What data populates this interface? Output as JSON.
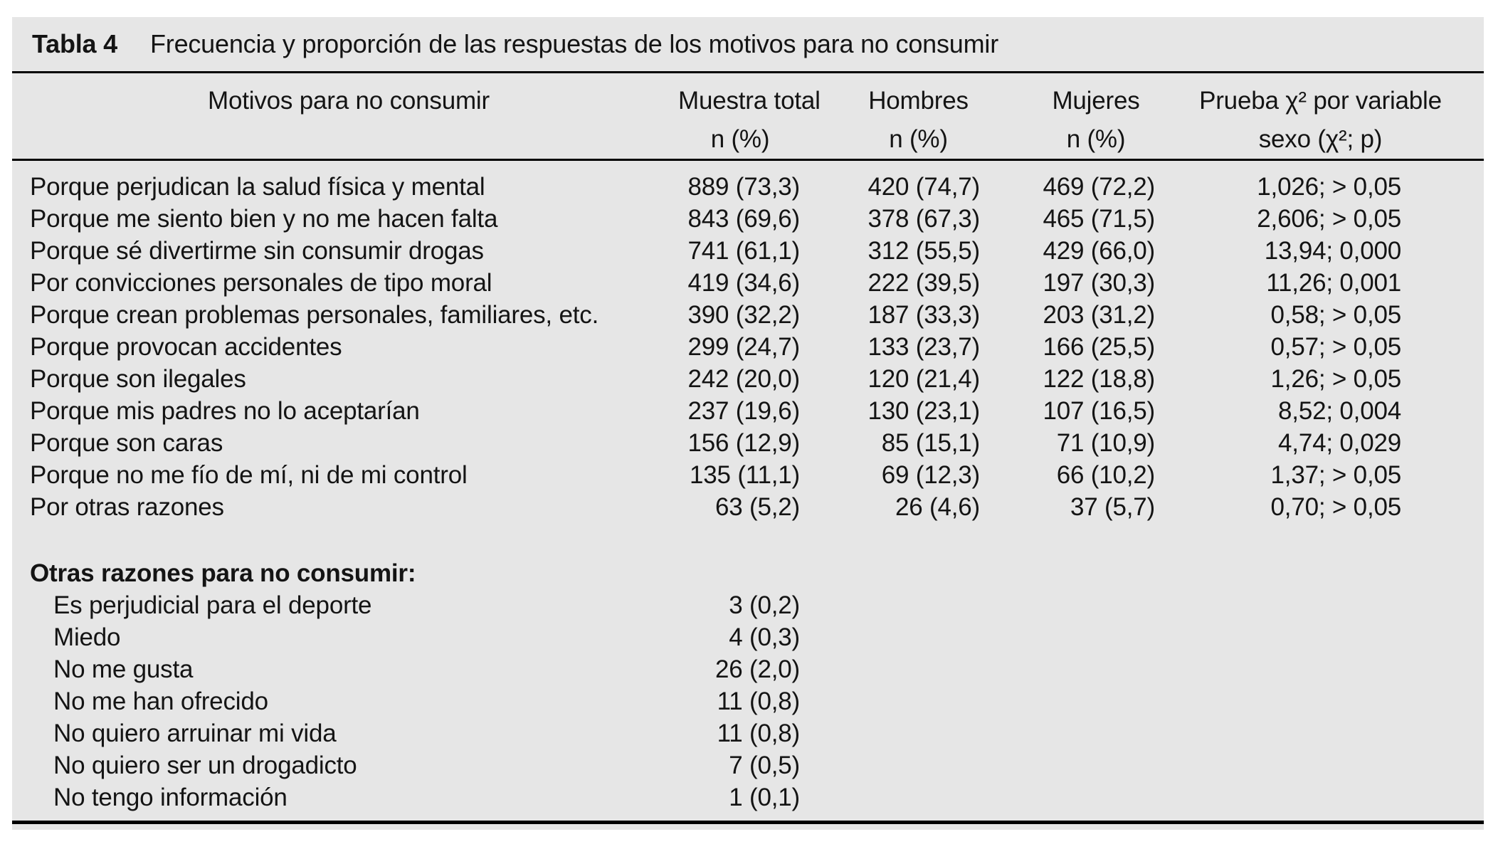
{
  "page": {
    "background": "#ffffff",
    "panel_background": "#e6e6e6",
    "rule_color": "#000000",
    "text_color": "#141414"
  },
  "caption": {
    "label": "Tabla 4",
    "text": "Frecuencia y proporción de las respuestas de los motivos para no consumir"
  },
  "columns": [
    {
      "line1": "Motivos para no consumir",
      "line2": ""
    },
    {
      "line1": "Muestra total",
      "line2": "n (%)"
    },
    {
      "line1": "Hombres",
      "line2": "n (%)"
    },
    {
      "line1": "Mujeres",
      "line2": "n (%)"
    },
    {
      "line1": "Prueba χ² por variable",
      "line2": "sexo (χ²; p)"
    }
  ],
  "rows": [
    {
      "motivo": "Porque perjudican la salud física y mental",
      "total": "889 (73,3)",
      "hombres": "420 (74,7)",
      "mujeres": "469 (72,2)",
      "prueba": "1,026; > 0,05"
    },
    {
      "motivo": "Porque me siento bien y no me hacen falta",
      "total": "843 (69,6)",
      "hombres": "378 (67,3)",
      "mujeres": "465 (71,5)",
      "prueba": "2,606; > 0,05"
    },
    {
      "motivo": "Porque sé divertirme sin consumir drogas",
      "total": "741 (61,1)",
      "hombres": "312 (55,5)",
      "mujeres": "429 (66,0)",
      "prueba": "13,94; 0,000"
    },
    {
      "motivo": "Por convicciones personales de tipo moral",
      "total": "419 (34,6)",
      "hombres": "222 (39,5)",
      "mujeres": "197 (30,3)",
      "prueba": "11,26; 0,001"
    },
    {
      "motivo": "Porque crean problemas personales, familiares, etc.",
      "total": "390 (32,2)",
      "hombres": "187 (33,3)",
      "mujeres": "203 (31,2)",
      "prueba": "0,58; > 0,05"
    },
    {
      "motivo": "Porque provocan accidentes",
      "total": "299 (24,7)",
      "hombres": "133 (23,7)",
      "mujeres": "166 (25,5)",
      "prueba": "0,57; > 0,05"
    },
    {
      "motivo": "Porque son ilegales",
      "total": "242 (20,0)",
      "hombres": "120 (21,4)",
      "mujeres": "122 (18,8)",
      "prueba": "1,26; > 0,05"
    },
    {
      "motivo": "Porque mis padres no lo aceptarían",
      "total": "237 (19,6)",
      "hombres": "130 (23,1)",
      "mujeres": "107 (16,5)",
      "prueba": "8,52; 0,004"
    },
    {
      "motivo": "Porque son caras",
      "total": "156 (12,9)",
      "hombres": "85 (15,1)",
      "mujeres": "71 (10,9)",
      "prueba": "4,74; 0,029"
    },
    {
      "motivo": "Porque no me fío de mí, ni de mi control",
      "total": "135 (11,1)",
      "hombres": "69 (12,3)",
      "mujeres": "66 (10,2)",
      "prueba": "1,37; > 0,05"
    },
    {
      "motivo": "Por otras razones",
      "total": "63 (5,2)",
      "hombres": "26 (4,6)",
      "mujeres": "37 (5,7)",
      "prueba": "0,70; > 0,05"
    }
  ],
  "other_reasons": {
    "header": "Otras razones para no consumir:",
    "rows": [
      {
        "label": "Es perjudicial para el deporte",
        "total": "3 (0,2)"
      },
      {
        "label": "Miedo",
        "total": "4 (0,3)"
      },
      {
        "label": "No me gusta",
        "total": "26 (2,0)"
      },
      {
        "label": "No me han ofrecido",
        "total": "11 (0,8)"
      },
      {
        "label": "No quiero arruinar mi vida",
        "total": "11 (0,8)"
      },
      {
        "label": "No quiero ser un drogadicto",
        "total": "7 (0,5)"
      },
      {
        "label": "No tengo información",
        "total": "1 (0,1)"
      }
    ]
  }
}
